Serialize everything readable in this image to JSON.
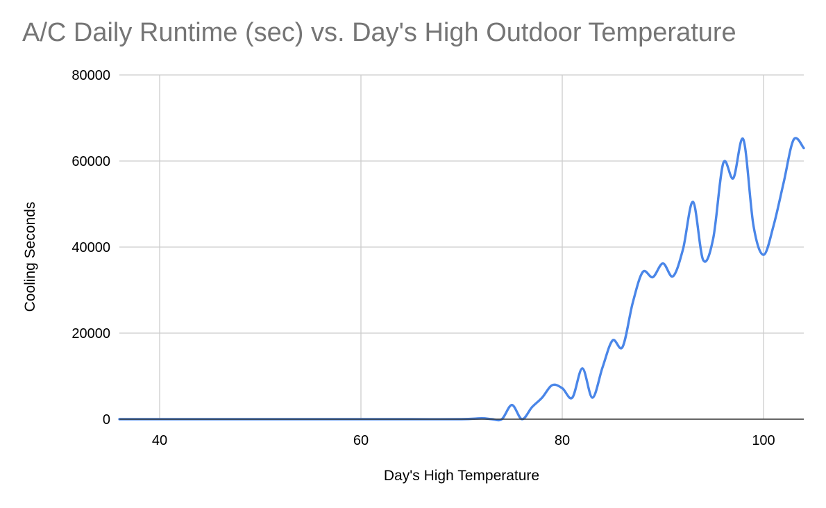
{
  "chart_data": {
    "type": "line",
    "title": "A/C Daily Runtime (sec) vs. Day's High Outdoor Temperature",
    "xlabel": "Day's High Temperature",
    "ylabel": "Cooling Seconds",
    "xlim": [
      36,
      104
    ],
    "ylim": [
      0,
      80000
    ],
    "x_ticks": [
      40,
      60,
      80,
      100
    ],
    "y_ticks": [
      0,
      20000,
      40000,
      60000,
      80000
    ],
    "grid": true,
    "smooth": true,
    "colors": {
      "series": "#4a86e8",
      "grid": "#cccccc",
      "axis": "#333333",
      "title": "#757575"
    },
    "series": [
      {
        "x": [
          36,
          40,
          45,
          50,
          55,
          60,
          65,
          70,
          72,
          73,
          74,
          75,
          76,
          77,
          78,
          79,
          80,
          81,
          82,
          83,
          84,
          85,
          86,
          87,
          88,
          89,
          90,
          91,
          92,
          93,
          94,
          95,
          96,
          97,
          98,
          99,
          100,
          101,
          102,
          103,
          104
        ],
        "values": [
          0,
          0,
          0,
          0,
          0,
          0,
          0,
          0,
          200,
          0,
          0,
          3300,
          0,
          2800,
          5000,
          7900,
          7200,
          5000,
          11800,
          5000,
          12000,
          18300,
          16800,
          27000,
          34200,
          33000,
          36200,
          33200,
          39500,
          50500,
          37000,
          42000,
          59500,
          56000,
          65000,
          45000,
          38200,
          45000,
          55000,
          65000,
          63000
        ]
      }
    ]
  }
}
